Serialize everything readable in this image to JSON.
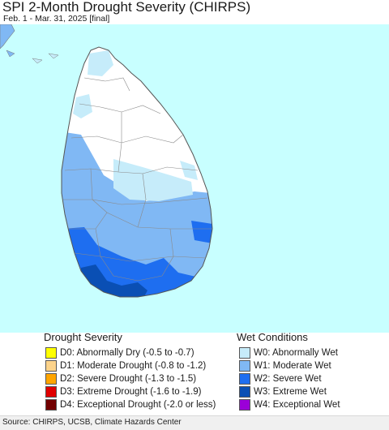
{
  "header": {
    "title": "SPI 2-Month Drought Severity (CHIRPS)",
    "subtitle": "Feb. 1 - Mar. 31, 2025 [final]"
  },
  "colors": {
    "sea": "#c8ffff",
    "no_data_land": "#ffffff",
    "W0": "#c6ecfa",
    "W1": "#80b8f4",
    "W2": "#1e6ef0",
    "W3": "#0a4fb4",
    "W4": "#9b00d8",
    "D0": "#ffff00",
    "D1": "#fcd38b",
    "D2": "#ffa500",
    "D3": "#e00000",
    "D4": "#720000"
  },
  "legend": {
    "drought": {
      "heading": "Drought Severity",
      "items": [
        {
          "label": "D0: Abnormally Dry (-0.5 to -0.7)",
          "color": "#ffff00"
        },
        {
          "label": "D1: Moderate Drought (-0.8 to -1.2)",
          "color": "#fcd38b"
        },
        {
          "label": "D2: Severe Drought (-1.3 to -1.5)",
          "color": "#ffa500"
        },
        {
          "label": "D3: Extreme Drought (-1.6 to -1.9)",
          "color": "#e00000"
        },
        {
          "label": "D4: Exceptional Drought (-2.0 or less)",
          "color": "#720000"
        }
      ]
    },
    "wet": {
      "heading": "Wet Conditions",
      "items": [
        {
          "label": "W0: Abnormally Wet",
          "color": "#c6ecfa"
        },
        {
          "label": "W1: Moderate Wet",
          "color": "#80b8f4"
        },
        {
          "label": "W2: Severe Wet",
          "color": "#1e6ef0"
        },
        {
          "label": "W3: Extreme Wet",
          "color": "#0a4fb4"
        },
        {
          "label": "W4: Exceptional Wet",
          "color": "#9b00d8"
        }
      ]
    }
  },
  "footer": {
    "source": "Source: CHIRPS, UCSB, Climate Hazards Center"
  }
}
